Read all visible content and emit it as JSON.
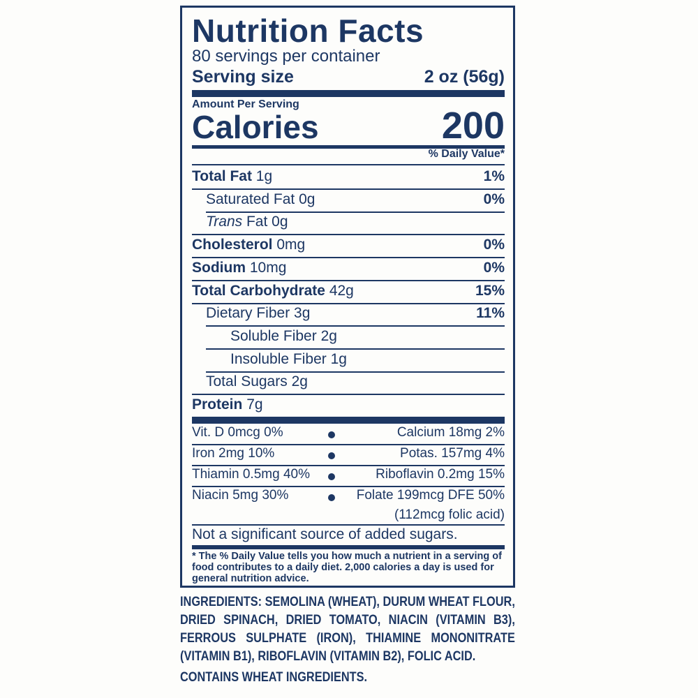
{
  "label": {
    "title": "Nutrition Facts",
    "servings_per_container": "80 servings per container",
    "serving_size_label": "Serving size",
    "serving_size_value": "2 oz (56g)",
    "amount_per_serving": "Amount Per Serving",
    "calories_label": "Calories",
    "calories_value": "200",
    "daily_value_header": "% Daily Value*",
    "nutrients": [
      {
        "name": "Total Fat",
        "amount": "1g",
        "dv": "1%",
        "bold": true,
        "indent": 0
      },
      {
        "name": "Saturated Fat",
        "amount": "0g",
        "dv": "0%",
        "bold": false,
        "indent": 1
      },
      {
        "name": "Trans",
        "amount": "Fat 0g",
        "dv": "",
        "bold": false,
        "indent": 1,
        "italic": true
      },
      {
        "name": "Cholesterol",
        "amount": "0mg",
        "dv": "0%",
        "bold": true,
        "indent": 0
      },
      {
        "name": "Sodium",
        "amount": "10mg",
        "dv": "0%",
        "bold": true,
        "indent": 0
      },
      {
        "name": "Total Carbohydrate",
        "amount": "42g",
        "dv": "15%",
        "bold": true,
        "indent": 0
      },
      {
        "name": "Dietary Fiber",
        "amount": "3g",
        "dv": "11%",
        "bold": false,
        "indent": 1
      },
      {
        "name": "Soluble Fiber",
        "amount": "2g",
        "dv": "",
        "bold": false,
        "indent": 2
      },
      {
        "name": "Insoluble Fiber",
        "amount": "1g",
        "dv": "",
        "bold": false,
        "indent": 2
      },
      {
        "name": "Total Sugars",
        "amount": "2g",
        "dv": "",
        "bold": false,
        "indent": 1
      },
      {
        "name": "Protein",
        "amount": "7g",
        "dv": "",
        "bold": true,
        "indent": 0
      }
    ],
    "vitamins": [
      {
        "left": "Vit. D 0mcg 0%",
        "right": "Calcium 18mg 2%"
      },
      {
        "left": "Iron 2mg 10%",
        "right": "Potas. 157mg 4%"
      },
      {
        "left": "Thiamin 0.5mg 40%",
        "right": "Riboflavin 0.2mg 15%"
      },
      {
        "left": "Niacin 5mg 30%",
        "right": "Folate 199mcg DFE 50%",
        "right2": "(112mcg folic acid)"
      }
    ],
    "added_sugars_note": "Not a significant source of added sugars.",
    "footnote": "* The % Daily Value tells you how much a nutrient in a serving of food contributes to a daily diet. 2,000 calories a day is used for general nutrition advice."
  },
  "ingredients": "INGREDIENTS: SEMOLINA (WHEAT), DURUM WHEAT FLOUR, DRIED SPINACH, DRIED TOMATO, NIACIN (VITAMIN B3), FERROUS SULPHATE (IRON), THIAMINE MONONITRATE (VITAMIN B1), RIBOFLAVIN (VITAMIN B2), FOLIC ACID.",
  "allergen": "CONTAINS WHEAT INGREDIENTS.",
  "colors": {
    "ink": "#1d3763",
    "background": "#fdfdfb"
  }
}
